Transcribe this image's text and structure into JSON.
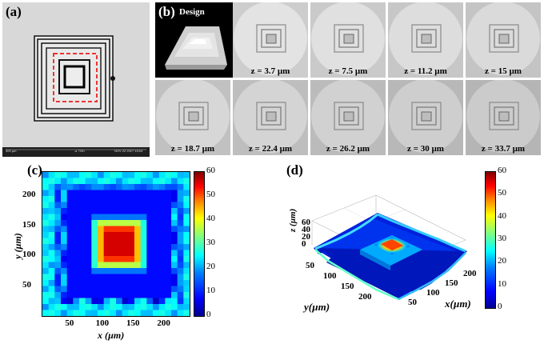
{
  "panels": {
    "a": {
      "label": "(a)",
      "footer": [
        "300 µm",
        "⊿  720×",
        "NOV 22 2017 15:04"
      ]
    },
    "b": {
      "label": "(b)",
      "design_label": "Design",
      "z_slices": [
        "z = 3.7 µm",
        "z = 7.5 µm",
        "z = 11.2 µm",
        "z = 15 µm",
        "z = 18.7 µm",
        "z = 22.4 µm",
        "z = 26.2 µm",
        "z = 30 µm",
        "z = 33.7 µm"
      ]
    },
    "c": {
      "label": "(c)"
    },
    "d": {
      "label": "(d)"
    }
  },
  "chart_data": [
    {
      "type": "heatmap",
      "panel": "c",
      "xlabel": "x (µm)",
      "ylabel": "y (µm)",
      "x_ticks": [
        50,
        100,
        150,
        200
      ],
      "y_ticks": [
        50,
        100,
        150,
        200
      ],
      "xlim": [
        0,
        240
      ],
      "ylim": [
        0,
        240
      ],
      "colorbar": {
        "ticks": [
          0,
          10,
          20,
          30,
          40,
          50,
          60
        ],
        "range": [
          0,
          60
        ]
      },
      "colormap": "jet",
      "features": {
        "center_plateau_height": 55,
        "mid_ring_height": 28,
        "outer_ring_height": 8
      }
    },
    {
      "type": "surface",
      "panel": "d",
      "xlabel": "x(µm)",
      "ylabel": "y(µm)",
      "zlabel": "z (µm)",
      "x_ticks": [
        50,
        100,
        150,
        200
      ],
      "y_ticks": [
        50,
        100,
        150,
        200
      ],
      "z_ticks": [
        0,
        20,
        40,
        60
      ],
      "colorbar": {
        "ticks": [
          0,
          10,
          20,
          30,
          40,
          50,
          60
        ],
        "range": [
          0,
          60
        ]
      },
      "colormap": "jet"
    }
  ]
}
